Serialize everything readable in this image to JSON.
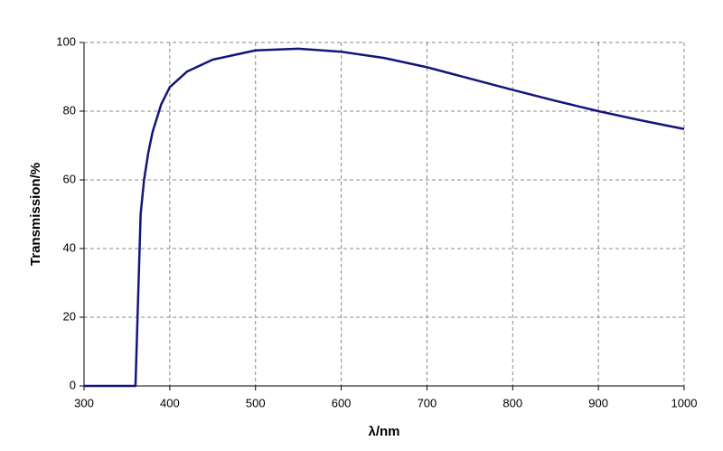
{
  "chart_data": {
    "type": "line",
    "x_label": "λ/nm",
    "y_label": "Transmission/%",
    "x": [
      300,
      355,
      360,
      363,
      366,
      370,
      375,
      380,
      390,
      400,
      420,
      450,
      500,
      550,
      600,
      650,
      700,
      750,
      800,
      850,
      900,
      950,
      1000
    ],
    "series": [
      {
        "color": "#14147a",
        "values": [
          0,
          0,
          0,
          25,
          50,
          60,
          68,
          74,
          82,
          87,
          91.5,
          95,
          97.7,
          98.2,
          97.3,
          95.5,
          92.8,
          89.5,
          86.2,
          83,
          80,
          77.3,
          74.8
        ]
      }
    ],
    "xlim": [
      300,
      1000
    ],
    "xticks": [
      300,
      400,
      500,
      600,
      700,
      800,
      900,
      1000
    ],
    "ylim": [
      0,
      100
    ],
    "yticks": [
      0,
      20,
      40,
      60,
      80,
      100
    ],
    "grid": true
  }
}
